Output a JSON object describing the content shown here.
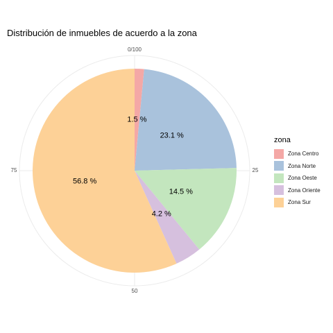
{
  "chart_data": {
    "type": "pie",
    "title": "Distribución de inmuebles de acuerdo a la zona",
    "legend_title": "zona",
    "legend_position": "right",
    "grid": true,
    "radial_ticks": [
      "0/100",
      "25",
      "50",
      "75"
    ],
    "categories": [
      "Zona Centro",
      "Zona Norte",
      "Zona Oeste",
      "Zona Oriente",
      "Zona Sur"
    ],
    "values": [
      1.5,
      23.1,
      14.5,
      4.2,
      56.8
    ],
    "labels": [
      "1.5 %",
      "23.1 %",
      "14.5 %",
      "4.2 %",
      "56.8 %"
    ],
    "colors": [
      "#F4A8A6",
      "#A9C2DC",
      "#C3E6BE",
      "#D6C0DE",
      "#FDD197"
    ]
  }
}
